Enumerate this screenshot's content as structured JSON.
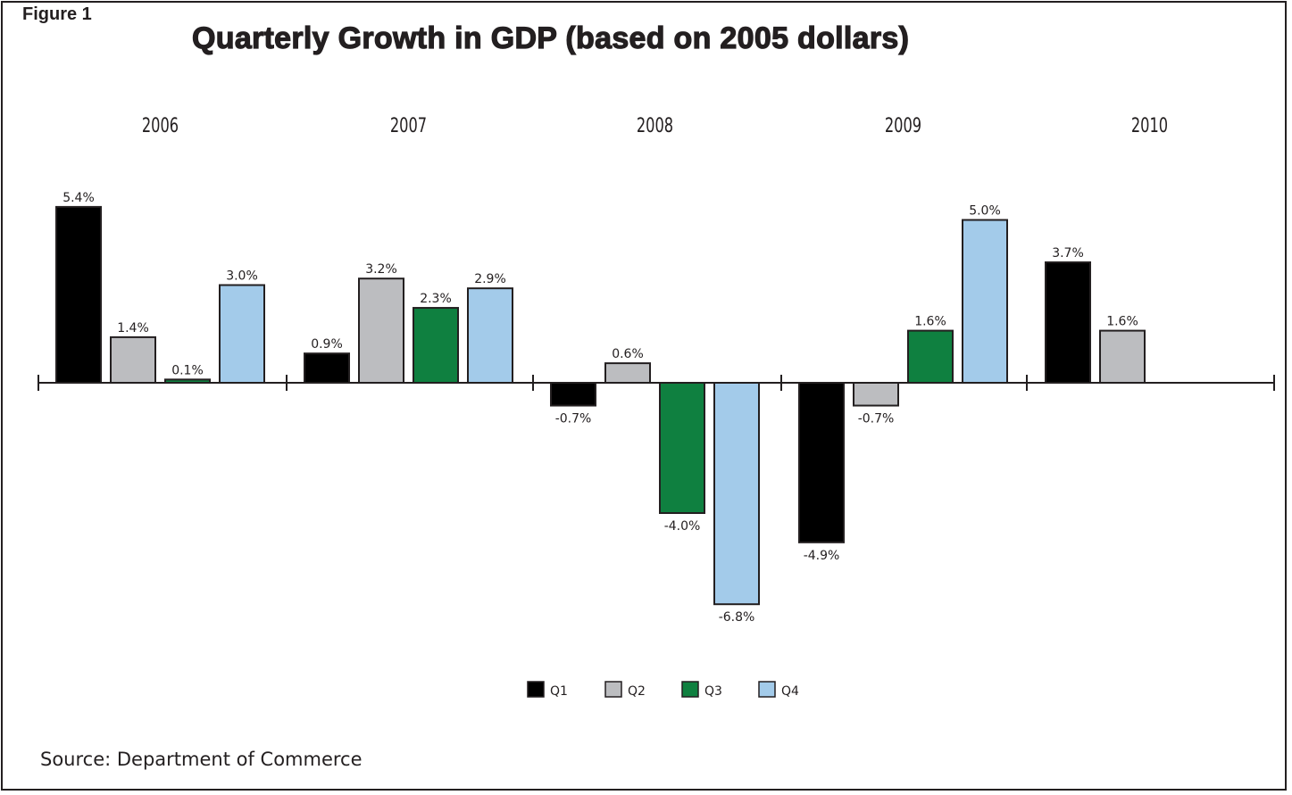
{
  "figure_label": "Figure 1",
  "title": "Quarterly Growth in GDP (based on 2005 dollars)",
  "source": "Source: Department of Commerce",
  "chart_data": {
    "type": "bar",
    "title": "Quarterly Growth in GDP (based on 2005 dollars)",
    "categories": [
      "2006",
      "2007",
      "2008",
      "2009",
      "2010"
    ],
    "series": [
      {
        "name": "Q1",
        "color": "#000000",
        "values": [
          5.4,
          0.9,
          -0.7,
          -4.9,
          3.7
        ]
      },
      {
        "name": "Q2",
        "color": "#bcbdc0",
        "values": [
          1.4,
          3.2,
          0.6,
          -0.7,
          1.6
        ]
      },
      {
        "name": "Q3",
        "color": "#0f8040",
        "values": [
          0.1,
          2.3,
          -4.0,
          1.6,
          null
        ]
      },
      {
        "name": "Q4",
        "color": "#a3cbea",
        "values": [
          3.0,
          2.9,
          -6.8,
          5.0,
          null
        ]
      }
    ],
    "data_labels": [
      [
        "5.4%",
        "0.9%",
        "-0.7%",
        "-4.9%",
        "3.7%"
      ],
      [
        "1.4%",
        "3.2%",
        "0.6%",
        "-0.7%",
        "1.6%"
      ],
      [
        "0.1%",
        "2.3%",
        "-4.0%",
        "1.6%",
        ""
      ],
      [
        "3.0%",
        "2.9%",
        "-6.8%",
        "5.0%",
        ""
      ]
    ],
    "legend_position": "bottom-center",
    "category_labels_position": "top",
    "grid": false,
    "xlabel": "",
    "ylabel": ""
  }
}
